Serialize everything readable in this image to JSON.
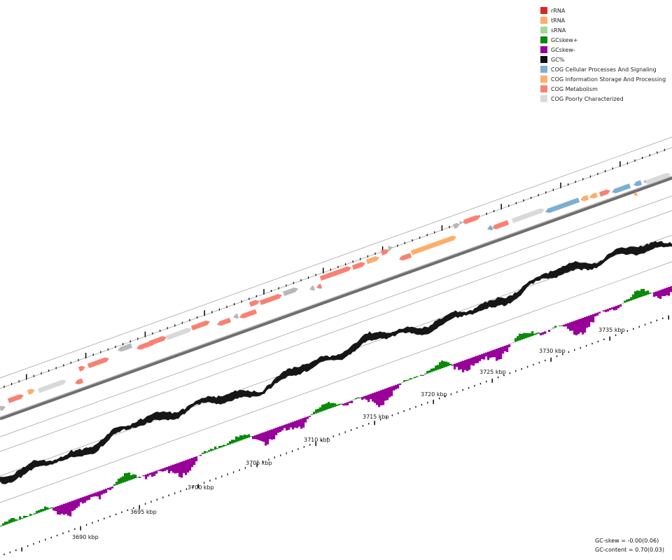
{
  "legend": [
    {
      "label": "rRNA",
      "color": "#d62728"
    },
    {
      "label": "tRNA",
      "color": "#fdae6b"
    },
    {
      "label": "sRNA",
      "color": "#a1d99b"
    },
    {
      "label": "GCskew+",
      "color": "#0a8a0a"
    },
    {
      "label": "GCskew-",
      "color": "#990099"
    },
    {
      "label": "GC%",
      "color": "#111111"
    },
    {
      "label": "COG Cellular Processes And Signaling",
      "color": "#7bafd4"
    },
    {
      "label": "COG Information Storage And Processing",
      "color": "#fdae6b"
    },
    {
      "label": "COG Metabolism",
      "color": "#fa8072"
    },
    {
      "label": "COG Poorly Characterized",
      "color": "#d9d9d9"
    }
  ],
  "ruler": {
    "labels": [
      "3690 kbp",
      "3695 kbp",
      "3700 kbp",
      "3705 kbp",
      "3710 kbp",
      "3715 kbp",
      "3720 kbp",
      "3725 kbp",
      "3730 kbp",
      "3735 kbp"
    ]
  },
  "stats": {
    "gc_skew": "GC-skew = -0.00(0.06)",
    "gc_content": "GC-content = 0.70(0.03)"
  }
}
